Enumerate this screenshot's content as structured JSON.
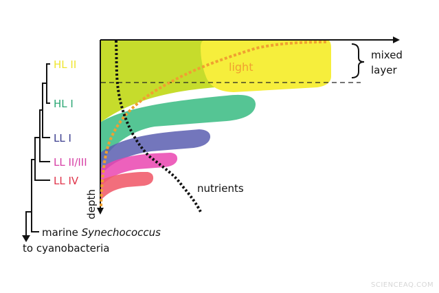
{
  "clades": [
    {
      "label": "HL II",
      "color": "#efe52e"
    },
    {
      "label": "HL I",
      "color": "#2aa673"
    },
    {
      "label": "LL I",
      "color": "#3b3d8e"
    },
    {
      "label": "LL II/III",
      "color": "#d63fa5"
    },
    {
      "label": "LL IV",
      "color": "#e0344a"
    }
  ],
  "outgroup": {
    "prefix": "marine ",
    "italic": "Synechococcus"
  },
  "root_label": "to cyanobacteria",
  "axis_label_depth": "depth",
  "light_label": "light",
  "nutrients_label": "nutrients",
  "mixed_layer_label": [
    "mixed",
    "layer"
  ],
  "watermark": "SCIENCEAQ.COM",
  "colors": {
    "lime": "#c6dc2c",
    "yellow": "#f6ee3c",
    "green": "#3dbd85",
    "blue": "#5a5eb0",
    "pink": "#ea45b0",
    "red": "#f05a6a",
    "light_curve": "#f0a030",
    "nutrient_curve": "#111111"
  }
}
